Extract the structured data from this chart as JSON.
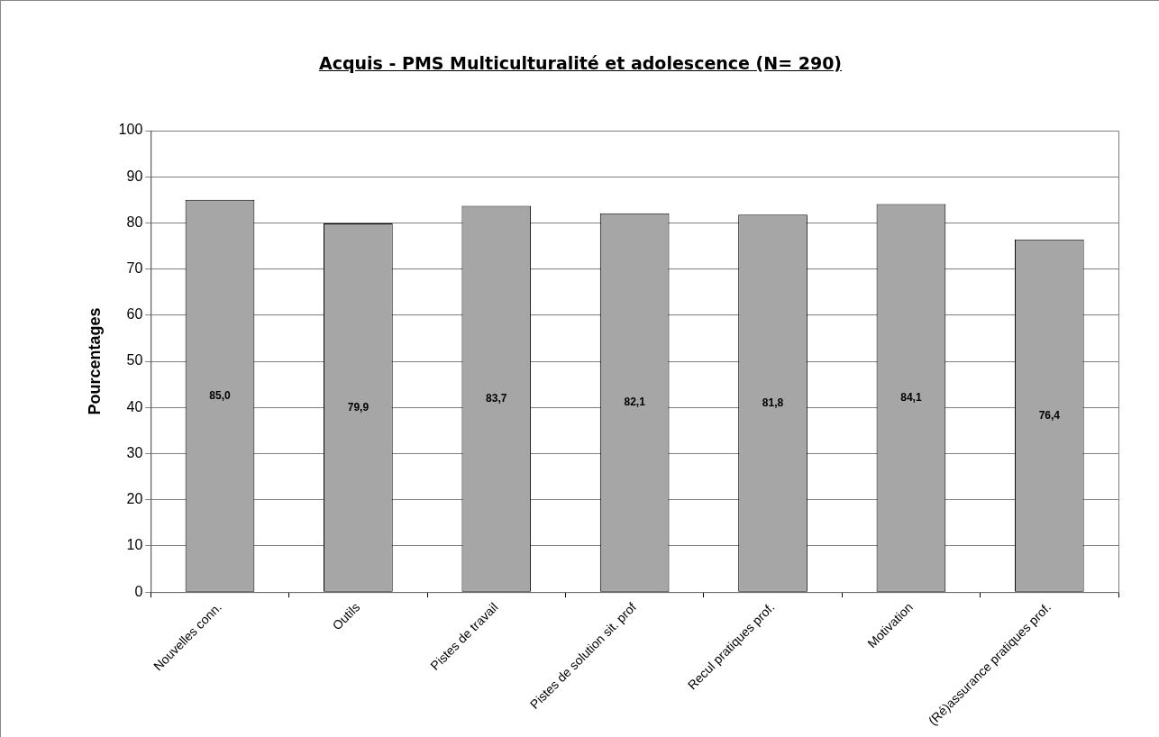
{
  "chart_data": {
    "type": "bar",
    "title": "Acquis - PMS Multiculturalité et adolescence (N= 290)",
    "ylabel": "Pourcentages",
    "categories": [
      "Nouvelles conn.",
      "Outils",
      "Pistes de travail",
      "Pistes de solution sit. prof",
      "Recul pratiques prof.",
      "Motivation",
      "(Ré)assurance pratiques prof."
    ],
    "values": [
      85.0,
      79.9,
      83.7,
      82.1,
      81.8,
      84.1,
      76.4
    ],
    "value_labels": [
      "85,0",
      "79,9",
      "83,7",
      "82,1",
      "81,8",
      "84,1",
      "76,4"
    ],
    "color": "#a6a6a6",
    "ylim": [
      0,
      100
    ],
    "yticks": [
      0,
      10,
      20,
      30,
      40,
      50,
      60,
      70,
      80,
      90,
      100
    ],
    "grid": "y",
    "legend": false
  }
}
